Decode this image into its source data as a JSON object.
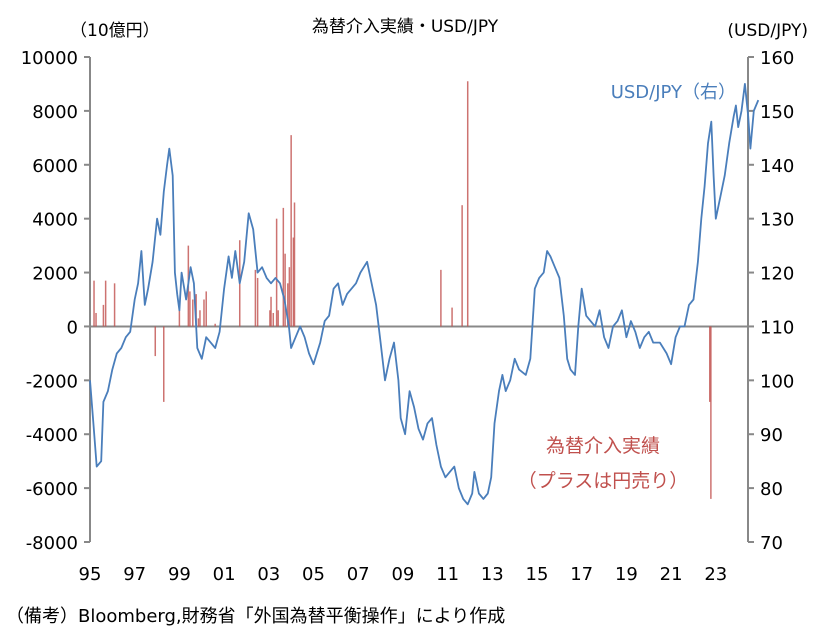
{
  "chart_data": {
    "type": "bar+line",
    "title": "為替介入実績・USD/JPY",
    "left_unit": "（10億円）",
    "right_unit": "(USD/JPY)",
    "left_ylim": [
      -8000,
      10000
    ],
    "left_ticks": [
      "10000",
      "8000",
      "6000",
      "4000",
      "2000",
      "0",
      "-2000",
      "-4000",
      "-6000",
      "-8000"
    ],
    "right_ylim": [
      70,
      160
    ],
    "right_ticks": [
      "160",
      "150",
      "140",
      "130",
      "120",
      "110",
      "100",
      "90",
      "80",
      "70"
    ],
    "x_ticks": [
      "95",
      "97",
      "99",
      "01",
      "03",
      "05",
      "07",
      "09",
      "11",
      "13",
      "15",
      "17",
      "19",
      "21",
      "23"
    ],
    "grid": false,
    "colors": {
      "line": "#4a7ebb",
      "bars": "#c0504d"
    },
    "series": [
      {
        "name": "USD/JPY（右）",
        "axis": "right",
        "points": [
          [
            1995.0,
            100
          ],
          [
            1995.15,
            92
          ],
          [
            1995.3,
            84
          ],
          [
            1995.5,
            85
          ],
          [
            1995.6,
            96
          ],
          [
            1995.8,
            98
          ],
          [
            1996.0,
            102
          ],
          [
            1996.2,
            105
          ],
          [
            1996.4,
            106
          ],
          [
            1996.6,
            108
          ],
          [
            1996.8,
            109
          ],
          [
            1997.0,
            115
          ],
          [
            1997.15,
            118
          ],
          [
            1997.3,
            124
          ],
          [
            1997.45,
            114
          ],
          [
            1997.6,
            117
          ],
          [
            1997.8,
            122
          ],
          [
            1998.0,
            130
          ],
          [
            1998.15,
            127
          ],
          [
            1998.3,
            135
          ],
          [
            1998.45,
            140
          ],
          [
            1998.55,
            143
          ],
          [
            1998.7,
            138
          ],
          [
            1998.8,
            120
          ],
          [
            1998.9,
            116
          ],
          [
            1999.0,
            113
          ],
          [
            1999.1,
            120
          ],
          [
            1999.3,
            115
          ],
          [
            1999.5,
            121
          ],
          [
            1999.65,
            118
          ],
          [
            1999.8,
            106
          ],
          [
            2000.0,
            104
          ],
          [
            2000.2,
            108
          ],
          [
            2000.4,
            107
          ],
          [
            2000.6,
            106
          ],
          [
            2000.8,
            109
          ],
          [
            2001.0,
            117
          ],
          [
            2001.2,
            123
          ],
          [
            2001.35,
            119
          ],
          [
            2001.5,
            124
          ],
          [
            2001.7,
            118
          ],
          [
            2001.9,
            122
          ],
          [
            2002.1,
            131
          ],
          [
            2002.3,
            128
          ],
          [
            2002.5,
            120
          ],
          [
            2002.7,
            121
          ],
          [
            2002.9,
            119
          ],
          [
            2003.1,
            118
          ],
          [
            2003.3,
            119
          ],
          [
            2003.5,
            118
          ],
          [
            2003.7,
            115
          ],
          [
            2003.9,
            110
          ],
          [
            2004.0,
            106
          ],
          [
            2004.2,
            108
          ],
          [
            2004.4,
            110
          ],
          [
            2004.6,
            108
          ],
          [
            2004.8,
            105
          ],
          [
            2005.0,
            103
          ],
          [
            2005.3,
            107
          ],
          [
            2005.5,
            111
          ],
          [
            2005.7,
            112
          ],
          [
            2005.9,
            117
          ],
          [
            2006.1,
            118
          ],
          [
            2006.3,
            114
          ],
          [
            2006.5,
            116
          ],
          [
            2006.7,
            117
          ],
          [
            2006.9,
            118
          ],
          [
            2007.1,
            120
          ],
          [
            2007.4,
            122
          ],
          [
            2007.6,
            118
          ],
          [
            2007.8,
            114
          ],
          [
            2008.0,
            107
          ],
          [
            2008.2,
            100
          ],
          [
            2008.4,
            104
          ],
          [
            2008.6,
            107
          ],
          [
            2008.8,
            100
          ],
          [
            2008.9,
            93
          ],
          [
            2009.1,
            90
          ],
          [
            2009.3,
            98
          ],
          [
            2009.5,
            95
          ],
          [
            2009.7,
            91
          ],
          [
            2009.9,
            89
          ],
          [
            2010.1,
            92
          ],
          [
            2010.3,
            93
          ],
          [
            2010.5,
            88
          ],
          [
            2010.7,
            84
          ],
          [
            2010.9,
            82
          ],
          [
            2011.1,
            83
          ],
          [
            2011.3,
            84
          ],
          [
            2011.5,
            80
          ],
          [
            2011.7,
            78
          ],
          [
            2011.9,
            77
          ],
          [
            2012.1,
            79
          ],
          [
            2012.2,
            83
          ],
          [
            2012.4,
            79
          ],
          [
            2012.6,
            78
          ],
          [
            2012.8,
            79
          ],
          [
            2012.95,
            82
          ],
          [
            2013.1,
            92
          ],
          [
            2013.3,
            98
          ],
          [
            2013.45,
            101
          ],
          [
            2013.6,
            98
          ],
          [
            2013.8,
            100
          ],
          [
            2014.0,
            104
          ],
          [
            2014.2,
            102
          ],
          [
            2014.5,
            101
          ],
          [
            2014.7,
            104
          ],
          [
            2014.9,
            117
          ],
          [
            2015.1,
            119
          ],
          [
            2015.3,
            120
          ],
          [
            2015.45,
            124
          ],
          [
            2015.6,
            123
          ],
          [
            2015.8,
            121
          ],
          [
            2016.0,
            119
          ],
          [
            2016.2,
            112
          ],
          [
            2016.35,
            104
          ],
          [
            2016.5,
            102
          ],
          [
            2016.7,
            101
          ],
          [
            2016.85,
            110
          ],
          [
            2017.0,
            117
          ],
          [
            2017.2,
            112
          ],
          [
            2017.4,
            111
          ],
          [
            2017.6,
            110
          ],
          [
            2017.8,
            113
          ],
          [
            2018.0,
            108
          ],
          [
            2018.2,
            106
          ],
          [
            2018.4,
            110
          ],
          [
            2018.6,
            111
          ],
          [
            2018.8,
            113
          ],
          [
            2019.0,
            108
          ],
          [
            2019.2,
            111
          ],
          [
            2019.4,
            109
          ],
          [
            2019.6,
            106
          ],
          [
            2019.8,
            108
          ],
          [
            2020.0,
            109
          ],
          [
            2020.2,
            107
          ],
          [
            2020.5,
            107
          ],
          [
            2020.8,
            105
          ],
          [
            2021.0,
            103
          ],
          [
            2021.2,
            108
          ],
          [
            2021.4,
            110
          ],
          [
            2021.6,
            110
          ],
          [
            2021.8,
            114
          ],
          [
            2022.0,
            115
          ],
          [
            2022.2,
            122
          ],
          [
            2022.35,
            130
          ],
          [
            2022.5,
            136
          ],
          [
            2022.65,
            144
          ],
          [
            2022.8,
            148
          ],
          [
            2022.9,
            138
          ],
          [
            2023.0,
            130
          ],
          [
            2023.2,
            134
          ],
          [
            2023.4,
            138
          ],
          [
            2023.6,
            144
          ],
          [
            2023.8,
            149
          ],
          [
            2023.9,
            151
          ],
          [
            2024.0,
            147
          ],
          [
            2024.15,
            150
          ],
          [
            2024.3,
            155
          ],
          [
            2024.45,
            149
          ],
          [
            2024.55,
            143
          ],
          [
            2024.7,
            150
          ],
          [
            2024.9,
            152
          ]
        ]
      },
      {
        "name": "為替介入実績（プラスは円売り）",
        "axis": "left",
        "points": [
          [
            1995.18,
            1700
          ],
          [
            1995.27,
            500
          ],
          [
            1995.6,
            800
          ],
          [
            1995.7,
            1700
          ],
          [
            1996.1,
            1600
          ],
          [
            1997.92,
            -1100
          ],
          [
            1998.3,
            -2800
          ],
          [
            1999.0,
            600
          ],
          [
            1999.4,
            3000
          ],
          [
            1999.47,
            1300
          ],
          [
            1999.6,
            1000
          ],
          [
            1999.75,
            1200
          ],
          [
            1999.85,
            300
          ],
          [
            1999.92,
            600
          ],
          [
            2000.1,
            1000
          ],
          [
            2000.2,
            1300
          ],
          [
            2000.6,
            100
          ],
          [
            2001.7,
            3200
          ],
          [
            2002.4,
            2100
          ],
          [
            2002.5,
            1800
          ],
          [
            2003.05,
            600
          ],
          [
            2003.1,
            1100
          ],
          [
            2003.2,
            500
          ],
          [
            2003.35,
            4000
          ],
          [
            2003.42,
            600
          ],
          [
            2003.65,
            4400
          ],
          [
            2003.73,
            2700
          ],
          [
            2003.85,
            1600
          ],
          [
            2003.92,
            2200
          ],
          [
            2004.0,
            7100
          ],
          [
            2004.1,
            3300
          ],
          [
            2004.15,
            4600
          ],
          [
            2010.7,
            2100
          ],
          [
            2011.2,
            700
          ],
          [
            2011.65,
            4500
          ],
          [
            2011.9,
            9100
          ],
          [
            2022.73,
            -2800
          ],
          [
            2022.78,
            -6400
          ]
        ]
      }
    ],
    "annotations": {
      "line_label": "USD/JPY（右）",
      "bar_label_1": "為替介入実績",
      "bar_label_2": "（プラスは円売り）"
    },
    "source": "（備考）Bloomberg,財務省「外国為替平衡操作」により作成"
  }
}
